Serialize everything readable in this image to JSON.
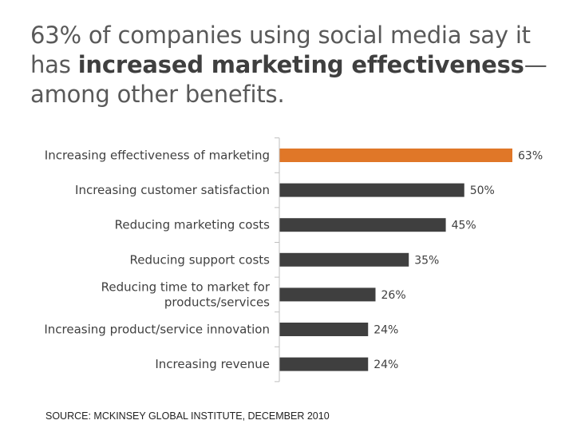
{
  "title": {
    "prefix": "63% of companies using social media say it has ",
    "highlight": "increased marketing effectiveness",
    "suffix": "—among other benefits."
  },
  "colors": {
    "highlight_bar": "#e07728",
    "bar": "#3f3f3f",
    "axis": "#bfbfbf"
  },
  "chart_data": {
    "type": "bar",
    "orientation": "horizontal",
    "categories": [
      "Increasing effectiveness of marketing",
      "Increasing customer satisfaction",
      "Reducing marketing costs",
      "Reducing support costs",
      "Reducing time to market for products/services",
      "Increasing product/service innovation",
      "Increasing revenue"
    ],
    "values": [
      63,
      50,
      45,
      35,
      26,
      24,
      24
    ],
    "value_labels": [
      "63%",
      "50%",
      "45%",
      "35%",
      "26%",
      "24%",
      "24%"
    ],
    "highlight_index": 0,
    "xlim": [
      0,
      63
    ],
    "grid": false
  },
  "source": "SOURCE: MCKINSEY GLOBAL INSTITUTE, DECEMBER 2010"
}
